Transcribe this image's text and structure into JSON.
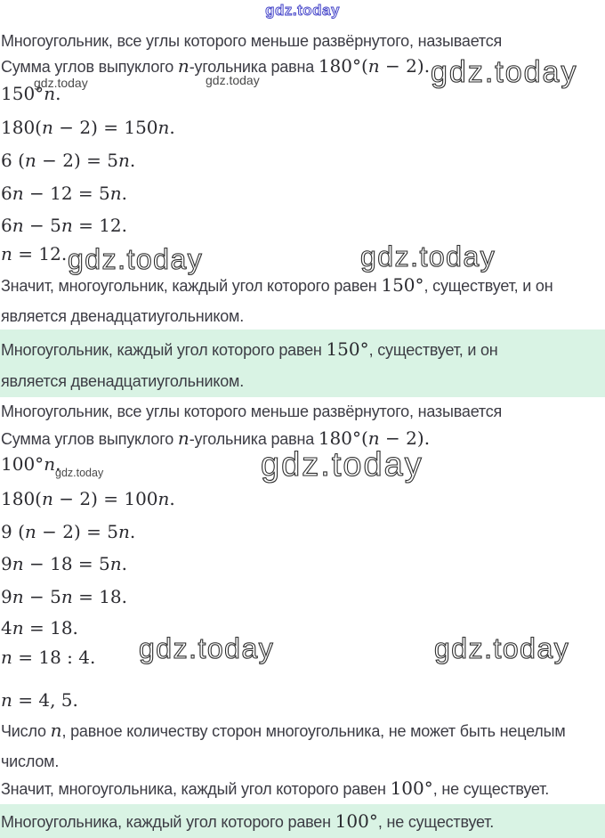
{
  "highlight_color": "#d9f3e4",
  "watermarks": {
    "top_label": "gdz.today",
    "brand_color": "#4646c8",
    "items": [
      {
        "label": "gdz.today"
      },
      {
        "label": "gdz.today"
      },
      {
        "label": "gdz.today"
      },
      {
        "label": "gdz.today"
      },
      {
        "label": "gdz.today"
      },
      {
        "label": "gdz.today"
      },
      {
        "label": "gdz.today"
      },
      {
        "label": "gdz.today"
      },
      {
        "label": "gdz.today"
      }
    ]
  },
  "content": {
    "lines": [
      {
        "name": "statement-definition-1",
        "segments": [
          {
            "s": "t",
            "x": "Многоугольник, все углы которого меньше развёрнутого, называется"
          }
        ]
      },
      {
        "name": "statement-sum-formula-1",
        "segments": [
          {
            "s": "t",
            "x": "Сумма углов выпуклого "
          },
          {
            "s": "v",
            "x": "n"
          },
          {
            "s": "t",
            "x": "-угольника равна "
          },
          {
            "s": "m",
            "x": "180°("
          },
          {
            "s": "v",
            "x": "n"
          },
          {
            "s": "m",
            "x": " − 2)."
          }
        ]
      },
      {
        "name": "equation",
        "segments": [
          {
            "s": "m",
            "x": "150°"
          },
          {
            "s": "v",
            "x": "n"
          },
          {
            "s": "m",
            "x": "."
          }
        ]
      },
      {
        "name": "equation",
        "segments": [
          {
            "s": "m",
            "x": "180("
          },
          {
            "s": "v",
            "x": "n"
          },
          {
            "s": "m",
            "x": " − 2) = 150"
          },
          {
            "s": "v",
            "x": "n"
          },
          {
            "s": "m",
            "x": "."
          }
        ]
      },
      {
        "name": "equation",
        "segments": [
          {
            "s": "m",
            "x": "6 ("
          },
          {
            "s": "v",
            "x": "n"
          },
          {
            "s": "m",
            "x": " − 2) = 5"
          },
          {
            "s": "v",
            "x": "n"
          },
          {
            "s": "m",
            "x": "."
          }
        ]
      },
      {
        "name": "equation",
        "segments": [
          {
            "s": "m",
            "x": "6"
          },
          {
            "s": "v",
            "x": "n"
          },
          {
            "s": "m",
            "x": " − 12 = 5"
          },
          {
            "s": "v",
            "x": "n"
          },
          {
            "s": "m",
            "x": "."
          }
        ]
      },
      {
        "name": "equation",
        "segments": [
          {
            "s": "m",
            "x": "6"
          },
          {
            "s": "v",
            "x": "n"
          },
          {
            "s": "m",
            "x": " − 5"
          },
          {
            "s": "v",
            "x": "n"
          },
          {
            "s": "m",
            "x": " = 12."
          }
        ]
      },
      {
        "name": "equation",
        "segments": [
          {
            "s": "v",
            "x": "n"
          },
          {
            "s": "m",
            "x": " = 12."
          }
        ]
      },
      {
        "name": "conclusion-1-line-1",
        "segments": [
          {
            "s": "t",
            "x": "Значит, многоугольник, каждый угол которого равен "
          },
          {
            "s": "m",
            "x": "150°"
          },
          {
            "s": "t",
            "x": ", существует, и он"
          }
        ]
      },
      {
        "name": "conclusion-1-line-2",
        "segments": [
          {
            "s": "t",
            "x": "является двенадцатиугольником."
          }
        ]
      },
      {
        "name": "answer-1-line-1",
        "segments": [
          {
            "s": "t",
            "x": "Многоугольник, каждый угол которого равен "
          },
          {
            "s": "m",
            "x": "150°"
          },
          {
            "s": "t",
            "x": ", существует, и он"
          }
        ]
      },
      {
        "name": "answer-1-line-2",
        "segments": [
          {
            "s": "t",
            "x": "является двенадцатиугольником."
          }
        ]
      },
      {
        "name": "statement-definition-2",
        "segments": [
          {
            "s": "t",
            "x": "Многоугольник, все углы которого меньше развёрнутого, называется"
          }
        ]
      },
      {
        "name": "statement-sum-formula-2",
        "segments": [
          {
            "s": "t",
            "x": "Сумма углов выпуклого "
          },
          {
            "s": "v",
            "x": "n"
          },
          {
            "s": "t",
            "x": "-угольника равна "
          },
          {
            "s": "m",
            "x": "180°("
          },
          {
            "s": "v",
            "x": "n"
          },
          {
            "s": "m",
            "x": " − 2)."
          }
        ]
      },
      {
        "name": "equation",
        "segments": [
          {
            "s": "m",
            "x": "100°"
          },
          {
            "s": "v",
            "x": "n"
          },
          {
            "s": "m",
            "x": "."
          }
        ]
      },
      {
        "name": "equation",
        "segments": [
          {
            "s": "m",
            "x": "180("
          },
          {
            "s": "v",
            "x": "n"
          },
          {
            "s": "m",
            "x": " − 2) = 100"
          },
          {
            "s": "v",
            "x": "n"
          },
          {
            "s": "m",
            "x": "."
          }
        ]
      },
      {
        "name": "equation",
        "segments": [
          {
            "s": "m",
            "x": "9 ("
          },
          {
            "s": "v",
            "x": "n"
          },
          {
            "s": "m",
            "x": " − 2) = 5"
          },
          {
            "s": "v",
            "x": "n"
          },
          {
            "s": "m",
            "x": "."
          }
        ]
      },
      {
        "name": "equation",
        "segments": [
          {
            "s": "m",
            "x": "9"
          },
          {
            "s": "v",
            "x": "n"
          },
          {
            "s": "m",
            "x": " − 18 = 5"
          },
          {
            "s": "v",
            "x": "n"
          },
          {
            "s": "m",
            "x": "."
          }
        ]
      },
      {
        "name": "equation",
        "segments": [
          {
            "s": "m",
            "x": "9"
          },
          {
            "s": "v",
            "x": "n"
          },
          {
            "s": "m",
            "x": " − 5"
          },
          {
            "s": "v",
            "x": "n"
          },
          {
            "s": "m",
            "x": " = 18."
          }
        ]
      },
      {
        "name": "equation",
        "segments": [
          {
            "s": "m",
            "x": "4"
          },
          {
            "s": "v",
            "x": "n"
          },
          {
            "s": "m",
            "x": " = 18."
          }
        ]
      },
      {
        "name": "equation",
        "segments": [
          {
            "s": "v",
            "x": "n"
          },
          {
            "s": "m",
            "x": " = 18 : 4."
          }
        ]
      },
      {
        "name": "equation",
        "segments": [
          {
            "s": "v",
            "x": "n"
          },
          {
            "s": "m",
            "x": " = 4, 5."
          }
        ]
      },
      {
        "name": "reasoning-line-1",
        "segments": [
          {
            "s": "t",
            "x": "Число "
          },
          {
            "s": "v",
            "x": "n"
          },
          {
            "s": "t",
            "x": ", равное количеству сторон многоугольника, не может быть нецелым"
          }
        ]
      },
      {
        "name": "reasoning-line-2",
        "segments": [
          {
            "s": "t",
            "x": "числом."
          }
        ]
      },
      {
        "name": "conclusion-2",
        "segments": [
          {
            "s": "t",
            "x": "Значит, многоугольника, каждый угол которого равен "
          },
          {
            "s": "m",
            "x": "100°"
          },
          {
            "s": "t",
            "x": ", не существует."
          }
        ]
      },
      {
        "name": "answer-2",
        "segments": [
          {
            "s": "t",
            "x": "Многоугольника, каждый угол которого равен "
          },
          {
            "s": "m",
            "x": "100°"
          },
          {
            "s": "t",
            "x": ", не существует."
          }
        ]
      }
    ]
  }
}
